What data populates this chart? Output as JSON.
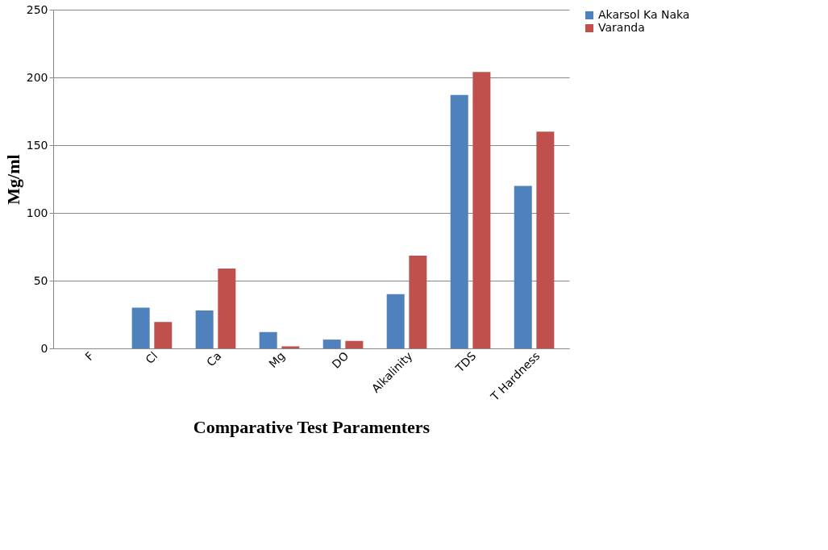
{
  "chart_data": {
    "type": "bar",
    "xlabel": "Comparative Test Paramenters",
    "ylabel": "Mg/ml",
    "categories": [
      "F",
      "Cl",
      "Ca",
      "Mg",
      "DO",
      "Alkalinity",
      "TDS",
      "T Hardness"
    ],
    "series": [
      {
        "name": "Akarsol Ka Naka",
        "color": "#4f81bd",
        "values": [
          0,
          30,
          28,
          12,
          6.5,
          40,
          187,
          120
        ]
      },
      {
        "name": "Varanda",
        "color": "#c0504d",
        "values": [
          0,
          19.5,
          59,
          1.5,
          5.5,
          68.5,
          204,
          160
        ]
      }
    ],
    "ylim": [
      0,
      250
    ],
    "yticks": [
      0,
      50,
      100,
      150,
      200,
      250
    ],
    "grid": "y",
    "legend": "right"
  }
}
